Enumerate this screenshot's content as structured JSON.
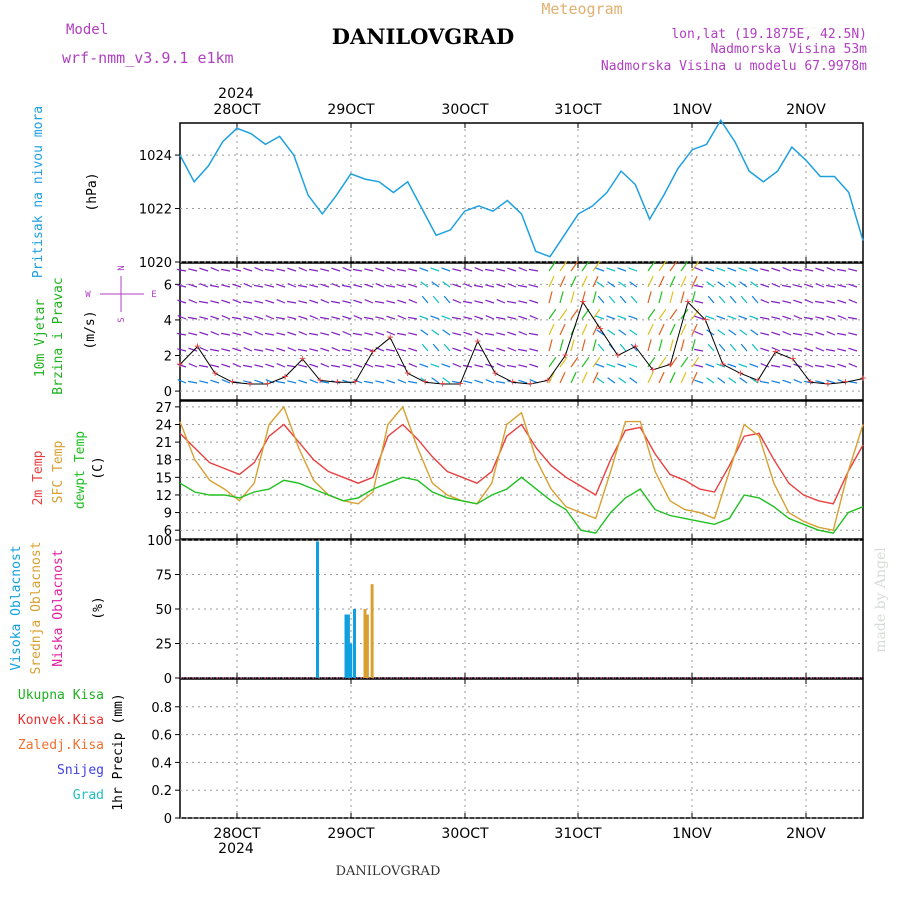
{
  "header": {
    "model_label": "Model",
    "model_name": "wrf-nmm_v3.9.1  e1km",
    "title": "DANILOVGRAD",
    "subtitle": "Meteogram",
    "lonlat": "lon,lat (19.1875E, 42.5N)",
    "height": "Nadmorska Visina 53m",
    "model_height": "Nadmorska Visina u modelu 67.9978m",
    "year": "2024",
    "date_labels": [
      "28OCT",
      "29OCT",
      "30OCT",
      "31OCT",
      "1NOV",
      "2NOV"
    ],
    "footer": "DANILOVGRAD",
    "watermark": "made by Angel"
  },
  "colors": {
    "pressure": "#1ea0e0",
    "wind_speed_label": "#20b020",
    "wind_dir_label": "#20b020",
    "temp2m": "#e84040",
    "sfc_temp": "#d8a030",
    "dewpt": "#20c020",
    "cloud_high": "#10a0e0",
    "cloud_mid": "#d8a030",
    "cloud_low": "#e020a0",
    "precip_total": "#20b020",
    "precip_conv": "#e83030",
    "precip_frz": "#f07030",
    "precip_snow": "#4040e0",
    "precip_grad": "#20c0c0",
    "compass": "#b040c0",
    "wind_speed_line": "#000000",
    "wind_gust": "#e84040"
  },
  "panel_labels": {
    "pressure": "Pritisak na nivou mora",
    "pressure_unit": "(hPa)",
    "wind_speed": "10m Vjetar",
    "wind_dir": "Brzina i Pravac",
    "wind_unit": "(m/s)",
    "compass_n": "N",
    "compass_s": "S",
    "compass_w": "W",
    "compass_e": "E",
    "temp2m": "2m Temp",
    "sfc_temp": "SFC Temp",
    "dewpt": "dewpt Temp",
    "temp_unit": "(C)",
    "cloud_high": "Visoka Oblacnost",
    "cloud_mid": "Srednja Oblacnost",
    "cloud_low": "Niska Oblacnost",
    "cloud_unit": "(%)",
    "precip_total": "Ukupna Kisa",
    "precip_conv": "Konvek.Kisa",
    "precip_frz": "Zaledj.Kisa",
    "precip_snow": "Snijeg",
    "precip_grad": "Grad",
    "precip_unit": "1hr Precip (mm)"
  },
  "chart_data": [
    {
      "type": "line",
      "panel": "pressure",
      "ylabel": "(hPa)",
      "ylim": [
        1020,
        1025.2
      ],
      "yticks": [
        "1020",
        "1022",
        "1024"
      ],
      "x_start": 0,
      "x_step": 3,
      "x_unit": "hours from 27OCT 12Z",
      "series": [
        {
          "values": [
            1024.0,
            1023.0,
            1023.6,
            1024.5,
            1025.0,
            1024.8,
            1024.4,
            1024.7,
            1024.0,
            1022.5,
            1021.8,
            1022.5,
            1023.3,
            1023.1,
            1023.0,
            1022.6,
            1023.0,
            1022.0,
            1021.0,
            1021.2,
            1021.9,
            1022.1,
            1021.9,
            1022.3,
            1021.8,
            1020.4,
            1020.2,
            1021.0,
            1021.8,
            1022.1,
            1022.6,
            1023.4,
            1022.9,
            1021.6,
            1022.5,
            1023.5,
            1024.2,
            1024.4,
            1025.3,
            1024.5,
            1023.4,
            1023.0,
            1023.4,
            1024.3,
            1023.8,
            1023.2,
            1023.2,
            1022.6,
            1020.8
          ]
        }
      ]
    },
    {
      "type": "line",
      "panel": "wind",
      "ylabel": "(m/s)",
      "ylim": [
        -0.5,
        7.2
      ],
      "yticks": [
        "0",
        "2",
        "4",
        "6"
      ],
      "series": [
        {
          "name": "",
          "values": [
            1.5,
            2.5,
            1.0,
            0.5,
            0.4,
            0.4,
            0.8,
            1.8,
            0.6,
            0.5,
            0.5,
            2.2,
            3.0,
            1.0,
            0.5,
            0.4,
            0.4,
            2.8,
            1.0,
            0.5,
            0.4,
            0.6,
            2.0,
            5.0,
            3.5,
            2.0,
            2.5,
            1.2,
            1.5,
            5.0,
            4.0,
            1.5,
            1.0,
            0.6,
            2.2,
            1.8,
            0.5,
            0.4,
            0.5,
            0.7
          ]
        }
      ]
    },
    {
      "type": "line",
      "panel": "temperature",
      "ylabel": "(C)",
      "ylim": [
        4.5,
        28
      ],
      "yticks": [
        "6",
        "9",
        "12",
        "15",
        "18",
        "21",
        "24",
        "27"
      ],
      "series": [
        {
          "name": "2m Temp",
          "values": [
            22.5,
            20.0,
            17.5,
            16.5,
            15.5,
            17.5,
            22.0,
            24.0,
            21.0,
            18.0,
            16.0,
            15.0,
            14.0,
            15.0,
            22.0,
            24.0,
            21.5,
            18.5,
            16.0,
            15.0,
            14.0,
            16.0,
            22.0,
            24.0,
            20.0,
            17.0,
            15.0,
            13.5,
            12.0,
            18.0,
            23.0,
            23.5,
            19.0,
            15.5,
            14.5,
            13.0,
            12.5,
            17.0,
            22.0,
            22.5,
            18.0,
            14.0,
            12.0,
            11.0,
            10.5,
            16.0,
            20.5
          ]
        },
        {
          "name": "SFC Temp",
          "values": [
            24.5,
            18.0,
            14.5,
            13.0,
            11.0,
            14.0,
            24.0,
            27.0,
            20.0,
            14.5,
            12.0,
            11.0,
            10.5,
            12.5,
            24.0,
            27.0,
            20.0,
            14.0,
            12.0,
            11.0,
            10.5,
            14.0,
            24.0,
            26.0,
            18.0,
            13.0,
            10.0,
            9.0,
            8.0,
            16.0,
            24.5,
            24.5,
            16.0,
            11.0,
            9.5,
            9.0,
            8.0,
            16.0,
            24.0,
            22.0,
            14.0,
            9.0,
            7.5,
            6.5,
            6.0,
            16.0,
            24.0
          ]
        },
        {
          "name": "dewpt Temp",
          "values": [
            14.0,
            12.5,
            12.0,
            12.0,
            11.5,
            12.5,
            13.0,
            14.5,
            14.0,
            13.0,
            12.0,
            11.0,
            11.5,
            13.0,
            14.0,
            15.0,
            14.5,
            12.5,
            11.5,
            11.0,
            10.5,
            12.0,
            13.0,
            15.0,
            13.0,
            11.0,
            9.5,
            6.0,
            5.5,
            9.0,
            11.5,
            13.0,
            9.5,
            8.5,
            8.0,
            7.5,
            7.0,
            8.0,
            12.0,
            11.5,
            10.0,
            8.0,
            7.0,
            6.0,
            5.5,
            9.0,
            10.0
          ]
        }
      ]
    },
    {
      "type": "bar",
      "panel": "cloud",
      "ylabel": "(%)",
      "ylim": [
        0,
        100
      ],
      "yticks": [
        "0",
        "25",
        "50",
        "75",
        "100"
      ],
      "series": [
        {
          "name": "Visoka Oblacnost",
          "points": [
            [
              29,
              99
            ],
            [
              35,
              46
            ],
            [
              35.5,
              46
            ],
            [
              36,
              25
            ],
            [
              36.8,
              50
            ]
          ]
        },
        {
          "name": "Srednja Oblacnost",
          "points": [
            [
              39,
              50
            ],
            [
              39.5,
              46
            ],
            [
              40.5,
              68
            ]
          ]
        },
        {
          "name": "Niska Oblacnost",
          "points": []
        }
      ]
    },
    {
      "type": "bar",
      "panel": "precip",
      "ylabel": "1hr Precip (mm)",
      "ylim": [
        0,
        1.0
      ],
      "yticks": [
        "0",
        "0.2",
        "0.4",
        "0.6",
        "0.8"
      ],
      "series": [
        {
          "name": "Ukupna Kisa",
          "values": []
        },
        {
          "name": "Konvek.Kisa",
          "values": []
        },
        {
          "name": "Zaledj.Kisa",
          "values": []
        },
        {
          "name": "Snijeg",
          "values": []
        },
        {
          "name": "Grad",
          "values": []
        }
      ]
    }
  ]
}
